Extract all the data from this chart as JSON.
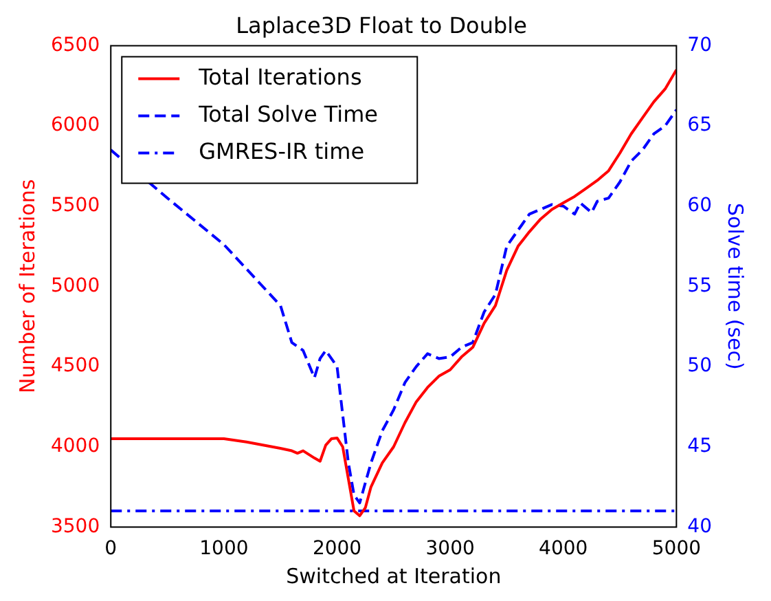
{
  "chart_data": {
    "type": "line",
    "title": "Laplace3D Float to Double",
    "xlabel": "Switched at Iteration",
    "ylabel": "Number of Iterations",
    "y2label": "Solve time (sec)",
    "xlim": [
      0,
      5000
    ],
    "xticks": [
      0,
      1000,
      2000,
      3000,
      4000,
      5000
    ],
    "ylim": [
      3500,
      6500
    ],
    "yticks": [
      3500,
      4000,
      4500,
      5000,
      5500,
      6000,
      6500
    ],
    "y2lim": [
      40,
      70
    ],
    "y2ticks": [
      40,
      45,
      50,
      55,
      60,
      65,
      70
    ],
    "grid": false,
    "legend": "top left",
    "series": [
      {
        "name": "Total Iterations",
        "color": "#ff0000",
        "line_style": "solid",
        "x": [
          0,
          500,
          1000,
          1200,
          1500,
          1600,
          1650,
          1700,
          1800,
          1850,
          1900,
          1950,
          2000,
          2050,
          2100,
          2150,
          2200,
          2250,
          2300,
          2400,
          2500,
          2600,
          2700,
          2800,
          2900,
          3000,
          3100,
          3200,
          3300,
          3400,
          3500,
          3600,
          3700,
          3800,
          3900,
          4000,
          4100,
          4200,
          4300,
          4400,
          4500,
          4600,
          4700,
          4800,
          4900,
          5000
        ],
        "values": [
          4050,
          4050,
          4050,
          4030,
          3990,
          3975,
          3960,
          3975,
          3930,
          3910,
          4010,
          4050,
          4055,
          4000,
          3800,
          3600,
          3570,
          3620,
          3750,
          3900,
          4000,
          4150,
          4280,
          4370,
          4440,
          4480,
          4560,
          4620,
          4770,
          4880,
          5100,
          5250,
          5340,
          5420,
          5480,
          5520,
          5560,
          5610,
          5660,
          5720,
          5830,
          5950,
          6050,
          6150,
          6230,
          6350
        ]
      },
      {
        "name": "Total Solve Time",
        "color": "#0000ff",
        "line_style": "dashed",
        "axis": "y2",
        "x": [
          0,
          500,
          1000,
          1500,
          1600,
          1700,
          1800,
          1850,
          1900,
          2000,
          2100,
          2150,
          2200,
          2300,
          2400,
          2500,
          2600,
          2700,
          2800,
          2900,
          3000,
          3100,
          3200,
          3300,
          3400,
          3500,
          3600,
          3700,
          3800,
          3900,
          4000,
          4100,
          4150,
          4250,
          4300,
          4400,
          4500,
          4600,
          4700,
          4800,
          4900,
          5000
        ],
        "values": [
          63.5,
          60.5,
          57.6,
          53.8,
          51.5,
          51,
          49.3,
          50.5,
          51,
          50,
          44,
          42,
          41.5,
          44,
          46,
          47.3,
          49,
          50,
          50.8,
          50.5,
          50.6,
          51.2,
          51.5,
          53.4,
          54.5,
          57.5,
          58.5,
          59.5,
          59.8,
          60.1,
          60,
          59.5,
          60.2,
          59.6,
          60.3,
          60.5,
          61.5,
          62.8,
          63.5,
          64.5,
          65,
          66
        ]
      },
      {
        "name": "GMRES-IR time",
        "color": "#0000ff",
        "line_style": "dashdot",
        "axis": "y2",
        "x": [
          0,
          5000
        ],
        "values": [
          41,
          41
        ]
      }
    ]
  }
}
